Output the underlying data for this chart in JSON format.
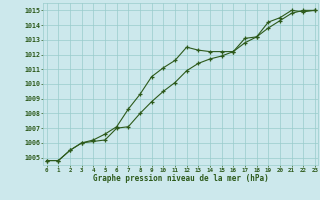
{
  "title": "Graphe pression niveau de la mer (hPa)",
  "x_labels": [
    0,
    1,
    2,
    3,
    4,
    5,
    6,
    7,
    8,
    9,
    10,
    11,
    12,
    13,
    14,
    15,
    16,
    17,
    18,
    19,
    20,
    21,
    22,
    23
  ],
  "ylim": [
    1004.5,
    1015.5
  ],
  "yticks": [
    1005,
    1006,
    1007,
    1008,
    1009,
    1010,
    1011,
    1012,
    1013,
    1014,
    1015
  ],
  "line1_upper": [
    1004.8,
    1004.8,
    1005.5,
    1006.0,
    1006.2,
    1006.6,
    1007.1,
    1008.3,
    1009.3,
    1010.5,
    1011.1,
    1011.6,
    1012.5,
    1012.3,
    1012.2,
    1012.2,
    1012.2,
    1013.1,
    1013.2,
    1014.2,
    1014.5,
    1015.0,
    1014.9,
    1015.0
  ],
  "line2_lower": [
    1004.8,
    1004.8,
    1005.5,
    1006.0,
    1006.1,
    1006.2,
    1007.0,
    1007.1,
    1008.0,
    1008.8,
    1009.5,
    1010.1,
    1010.9,
    1011.4,
    1011.7,
    1011.9,
    1012.2,
    1012.8,
    1013.2,
    1013.8,
    1014.3,
    1014.8,
    1015.0,
    1015.0
  ],
  "bg_color": "#cce8ec",
  "grid_color": "#99cccc",
  "line_color": "#2d5a1b",
  "tick_label_color": "#2d5a1b",
  "title_color": "#2d5a1b",
  "figsize": [
    3.2,
    2.0
  ],
  "dpi": 100
}
